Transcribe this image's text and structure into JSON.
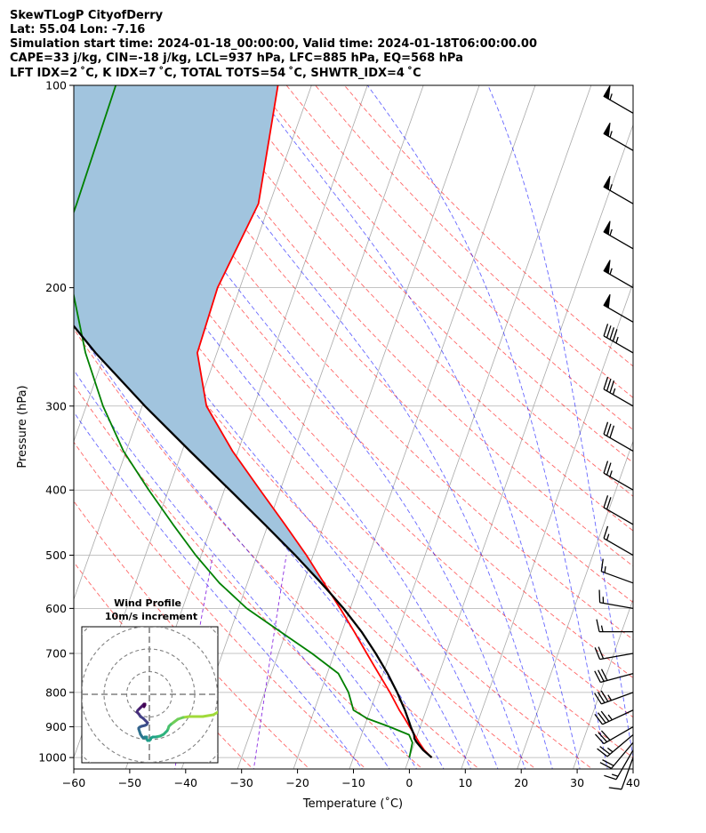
{
  "header": {
    "line1": "SkewTLogP CityofDerry",
    "line2": "Lat: 55.04   Lon: -7.16",
    "line3": "Simulation start time: 2024-01-18_00:00:00, Valid time: 2024-01-18T06:00:00.00",
    "line4": "CAPE=33 j/kg, CIN=-18 j/kg, LCL=937 hPa, LFC=885 hPa, EQ=568 hPa",
    "line5": "LFT IDX=2 ˚C, K IDX=7 ˚C, TOTAL TOTS=54 ˚C, SHWTR_IDX=4 ˚C"
  },
  "chart_data": {
    "type": "line",
    "subtype": "skew-T log-P diagram",
    "xlabel": "Temperature (˚C)",
    "ylabel": "Pressure (hPa)",
    "xlim": [
      -60,
      40
    ],
    "ylim": [
      1040,
      100
    ],
    "y_scale": "log",
    "skew_degrees_per_log10_pressure": 42.5,
    "x_ticks": [
      -60,
      -50,
      -40,
      -30,
      -20,
      -10,
      0,
      10,
      20,
      30,
      40
    ],
    "x_tick_labels": [
      "−60",
      "−50",
      "−40",
      "−30",
      "−20",
      "−10",
      "0",
      "10",
      "20",
      "30",
      "40"
    ],
    "y_ticks": [
      100,
      200,
      300,
      400,
      500,
      600,
      700,
      800,
      900,
      1000
    ],
    "y_tick_labels": [
      "100",
      "200",
      "300",
      "400",
      "500",
      "600",
      "700",
      "800",
      "900",
      "1000"
    ],
    "grid": true,
    "isotherm_spacing_c": 10,
    "dry_adiabats_theta_c": [
      -30,
      -20,
      -10,
      0,
      10,
      20,
      30,
      40,
      50,
      60,
      70,
      80,
      90,
      100,
      110,
      120,
      130,
      140,
      150
    ],
    "moist_adiabats_start_c": [
      -10,
      -5,
      0,
      5,
      10,
      15,
      20,
      25,
      30,
      35,
      40
    ],
    "mixing_ratio_lines": true,
    "series": [
      {
        "color": "#ff0000",
        "pressure": [
          1000,
          975,
          950,
          925,
          900,
          875,
          850,
          800,
          750,
          700,
          650,
          600,
          550,
          500,
          450,
          400,
          350,
          300,
          250,
          200,
          150,
          100
        ],
        "values": [
          4.0,
          2.2,
          0.8,
          -0.5,
          -1.9,
          -3.3,
          -4.8,
          -7.6,
          -10.8,
          -14.2,
          -17.8,
          -21.8,
          -26.3,
          -31.2,
          -37.0,
          -43.6,
          -51.0,
          -58.5,
          -63.5,
          -64.0,
          -62.0,
          -66.0
        ]
      },
      {
        "color": "#008000",
        "pressure": [
          1000,
          975,
          950,
          925,
          900,
          875,
          850,
          800,
          750,
          700,
          650,
          600,
          550,
          500,
          450,
          400,
          350,
          300,
          250,
          200,
          180,
          150,
          100
        ],
        "values": [
          0.0,
          -0.2,
          -0.4,
          -1.5,
          -5.5,
          -10.0,
          -13.0,
          -15.0,
          -18.0,
          -24.0,
          -31.0,
          -38.5,
          -45.0,
          -51.0,
          -57.0,
          -63.5,
          -70.5,
          -77.0,
          -83.5,
          -90.0,
          -94.5,
          -94.5,
          -95.0
        ]
      },
      {
        "color": "#000000",
        "pressure": [
          1000,
          975,
          950,
          937,
          925,
          900,
          885,
          850,
          800,
          750,
          700,
          650,
          600,
          568,
          550,
          500,
          450,
          400,
          350,
          300,
          250,
          200,
          150,
          100
        ],
        "values": [
          4.0,
          2.0,
          0.4,
          -0.3,
          -0.6,
          -1.7,
          -2.3,
          -3.8,
          -6.3,
          -9.2,
          -12.6,
          -16.5,
          -21.2,
          -24.7,
          -26.8,
          -33.2,
          -40.6,
          -49.0,
          -58.6,
          -69.5,
          -81.7,
          -95.3,
          -111.0,
          -129.0
        ]
      }
    ],
    "cape_shading": {
      "color": "#a1c4de",
      "from_pressure": 568,
      "to_pressure": 100
    },
    "wind_barbs": {
      "pressure": [
        1000,
        975,
        950,
        925,
        900,
        850,
        800,
        750,
        700,
        650,
        600,
        550,
        500,
        450,
        400,
        350,
        300,
        250,
        225,
        200,
        175,
        150,
        125,
        110
      ],
      "speed_kt": [
        10,
        15,
        20,
        25,
        30,
        35,
        35,
        30,
        20,
        15,
        15,
        15,
        15,
        20,
        25,
        30,
        35,
        45,
        50,
        55,
        55,
        55,
        55,
        55
      ],
      "direction_deg": [
        200,
        210,
        220,
        230,
        240,
        245,
        250,
        255,
        260,
        270,
        280,
        290,
        300,
        300,
        300,
        300,
        300,
        300,
        300,
        300,
        300,
        300,
        300,
        300
      ]
    },
    "inset": {
      "title": "Wind Profile",
      "subtitle": "10m/s increment",
      "ring_increment_ms": 10,
      "rings": 3,
      "u_ms": [
        13,
        11,
        8,
        4,
        0,
        -2,
        -4,
        -6,
        -6,
        -5,
        -4,
        -5,
        -7,
        -8,
        -8,
        -7,
        -7,
        -8,
        -9,
        -10,
        -10,
        -9
      ],
      "v_ms": [
        -4,
        -4,
        -5,
        -7,
        -8,
        -8,
        -9,
        -10,
        -12,
        -13,
        -14,
        -15,
        -16,
        -17,
        -18,
        -19,
        -20,
        -20,
        -21,
        -21,
        -22,
        -23
      ]
    }
  }
}
